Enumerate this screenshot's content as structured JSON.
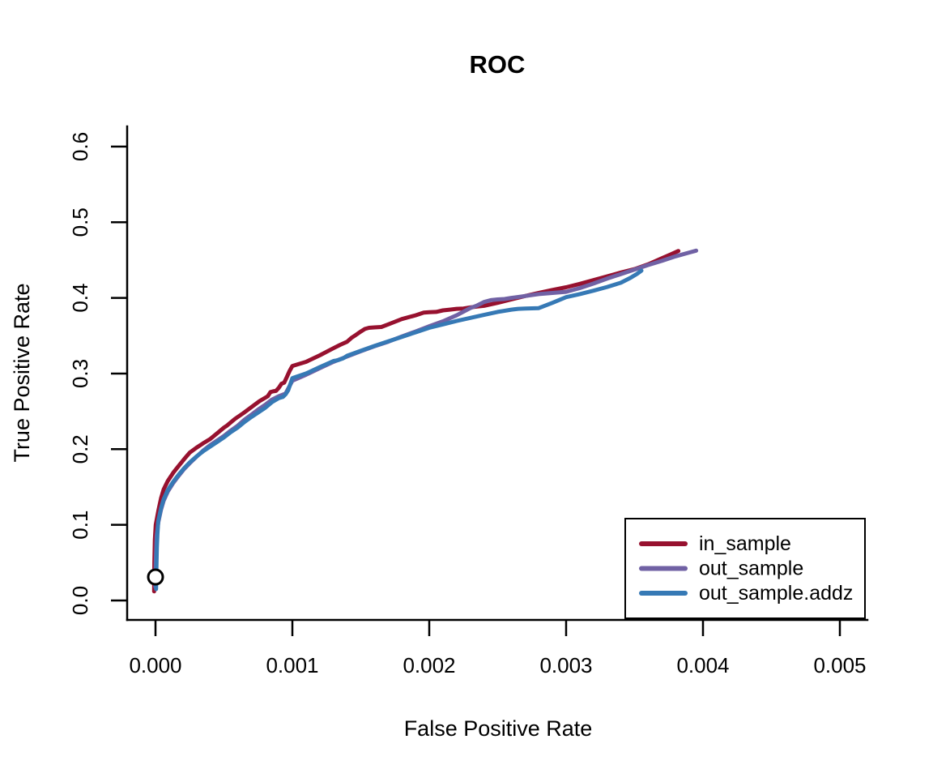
{
  "chart_data": {
    "type": "line",
    "title": "ROC",
    "xlabel": "False Positive Rate",
    "ylabel": "True Positive Rate",
    "xlim": [
      0.0,
      0.005
    ],
    "ylim": [
      0.0,
      0.6
    ],
    "grid": false,
    "x_ticks": {
      "values": [
        0.0,
        0.001,
        0.002,
        0.003,
        0.004,
        0.005
      ],
      "labels": [
        "0.000",
        "0.001",
        "0.002",
        "0.003",
        "0.004",
        "0.005"
      ]
    },
    "y_ticks": {
      "values": [
        0.0,
        0.1,
        0.2,
        0.3,
        0.4,
        0.5,
        0.6
      ],
      "labels": [
        "0.0",
        "0.1",
        "0.2",
        "0.3",
        "0.4",
        "0.5",
        "0.6"
      ]
    },
    "legend": {
      "position": "bottomright"
    },
    "marker": {
      "x": 0.0,
      "y": 0.031,
      "shape": "open-circle",
      "color": "#000000"
    },
    "axis_color": "#000000",
    "series": [
      {
        "name": "in_sample",
        "color": "#97112F",
        "points": [
          [
            -1e-05,
            0.012
          ],
          [
            -8e-06,
            0.05
          ],
          [
            -5e-06,
            0.08
          ],
          [
            2e-06,
            0.1
          ],
          [
            2e-05,
            0.118
          ],
          [
            4e-05,
            0.135
          ],
          [
            6e-05,
            0.147
          ],
          [
            9e-05,
            0.158
          ],
          [
            0.00013,
            0.169
          ],
          [
            0.00017,
            0.178
          ],
          [
            0.00021,
            0.187
          ],
          [
            0.00025,
            0.1955
          ],
          [
            0.0003,
            0.202
          ],
          [
            0.00035,
            0.208
          ],
          [
            0.0004,
            0.2135
          ],
          [
            0.00045,
            0.221
          ],
          [
            0.0005,
            0.2285
          ],
          [
            0.00052,
            0.231
          ],
          [
            0.00058,
            0.24
          ],
          [
            0.00064,
            0.2475
          ],
          [
            0.0007,
            0.2555
          ],
          [
            0.00076,
            0.2635
          ],
          [
            0.00082,
            0.27
          ],
          [
            0.00084,
            0.2755
          ],
          [
            0.00086,
            0.2765
          ],
          [
            0.00088,
            0.277
          ],
          [
            0.0009,
            0.281
          ],
          [
            0.00092,
            0.2865
          ],
          [
            0.00094,
            0.288
          ],
          [
            0.00096,
            0.2955
          ],
          [
            0.00098,
            0.3035
          ],
          [
            0.001,
            0.31
          ],
          [
            0.0011,
            0.3155
          ],
          [
            0.0012,
            0.324
          ],
          [
            0.0013,
            0.3335
          ],
          [
            0.00135,
            0.338
          ],
          [
            0.0014,
            0.342
          ],
          [
            0.00143,
            0.347
          ],
          [
            0.00146,
            0.3505
          ],
          [
            0.0015,
            0.3555
          ],
          [
            0.00153,
            0.359
          ],
          [
            0.00156,
            0.3605
          ],
          [
            0.0016,
            0.361
          ],
          [
            0.00165,
            0.3615
          ],
          [
            0.0017,
            0.365
          ],
          [
            0.0018,
            0.372
          ],
          [
            0.0019,
            0.377
          ],
          [
            0.00196,
            0.3805
          ],
          [
            0.002,
            0.381
          ],
          [
            0.00205,
            0.3815
          ],
          [
            0.0021,
            0.3835
          ],
          [
            0.00215,
            0.3845
          ],
          [
            0.0022,
            0.3855
          ],
          [
            0.00225,
            0.386
          ],
          [
            0.0023,
            0.3875
          ],
          [
            0.00235,
            0.3885
          ],
          [
            0.0024,
            0.3895
          ],
          [
            0.0025,
            0.3935
          ],
          [
            0.0026,
            0.398
          ],
          [
            0.0027,
            0.4025
          ],
          [
            0.0028,
            0.4065
          ],
          [
            0.0029,
            0.4105
          ],
          [
            0.003,
            0.414
          ],
          [
            0.0031,
            0.4185
          ],
          [
            0.0032,
            0.4235
          ],
          [
            0.0033,
            0.4285
          ],
          [
            0.0034,
            0.4335
          ],
          [
            0.0035,
            0.438
          ],
          [
            0.0036,
            0.4445
          ],
          [
            0.0037,
            0.4525
          ],
          [
            0.00377,
            0.458
          ],
          [
            0.00382,
            0.462
          ]
        ]
      },
      {
        "name": "out_sample",
        "color": "#7061A4",
        "points": [
          [
            -2e-06,
            0.018
          ],
          [
            2e-06,
            0.05
          ],
          [
            8e-06,
            0.085
          ],
          [
            2e-05,
            0.103
          ],
          [
            4e-05,
            0.12
          ],
          [
            6e-05,
            0.132
          ],
          [
            9e-05,
            0.144
          ],
          [
            0.00013,
            0.1555
          ],
          [
            0.00017,
            0.165
          ],
          [
            0.00021,
            0.174
          ],
          [
            0.00025,
            0.1815
          ],
          [
            0.0003,
            0.19
          ],
          [
            0.00035,
            0.1985
          ],
          [
            0.0004,
            0.2055
          ],
          [
            0.00045,
            0.2115
          ],
          [
            0.0005,
            0.2175
          ],
          [
            0.00055,
            0.2245
          ],
          [
            0.0006,
            0.231
          ],
          [
            0.00065,
            0.239
          ],
          [
            0.0007,
            0.2455
          ],
          [
            0.00075,
            0.2525
          ],
          [
            0.0008,
            0.2585
          ],
          [
            0.00085,
            0.2655
          ],
          [
            0.0009,
            0.27
          ],
          [
            0.00095,
            0.2735
          ],
          [
            0.001,
            0.2905
          ],
          [
            0.0011,
            0.2985
          ],
          [
            0.0012,
            0.307
          ],
          [
            0.0013,
            0.3155
          ],
          [
            0.0014,
            0.3225
          ],
          [
            0.0015,
            0.3295
          ],
          [
            0.0016,
            0.336
          ],
          [
            0.0017,
            0.342
          ],
          [
            0.0018,
            0.349
          ],
          [
            0.0019,
            0.3555
          ],
          [
            0.002,
            0.3625
          ],
          [
            0.0021,
            0.369
          ],
          [
            0.0022,
            0.377
          ],
          [
            0.0023,
            0.3865
          ],
          [
            0.00235,
            0.39
          ],
          [
            0.0024,
            0.3945
          ],
          [
            0.00245,
            0.397
          ],
          [
            0.0025,
            0.398
          ],
          [
            0.00255,
            0.3985
          ],
          [
            0.0026,
            0.4
          ],
          [
            0.0027,
            0.4025
          ],
          [
            0.0028,
            0.405
          ],
          [
            0.0029,
            0.4065
          ],
          [
            0.003,
            0.408
          ],
          [
            0.0031,
            0.413
          ],
          [
            0.0032,
            0.419
          ],
          [
            0.0033,
            0.4255
          ],
          [
            0.0034,
            0.4315
          ],
          [
            0.0035,
            0.4375
          ],
          [
            0.0036,
            0.4435
          ],
          [
            0.0037,
            0.449
          ],
          [
            0.0038,
            0.455
          ],
          [
            0.0039,
            0.46
          ],
          [
            0.00395,
            0.4625
          ]
        ]
      },
      {
        "name": "out_sample.addz",
        "color": "#3679B5",
        "points": [
          [
            4e-06,
            0.015
          ],
          [
            7e-06,
            0.045
          ],
          [
            1e-05,
            0.07
          ],
          [
            1.4e-05,
            0.088
          ],
          [
            2e-05,
            0.105
          ],
          [
            4e-05,
            0.122
          ],
          [
            6e-05,
            0.134
          ],
          [
            9e-05,
            0.146
          ],
          [
            0.00013,
            0.157
          ],
          [
            0.00017,
            0.1665
          ],
          [
            0.00021,
            0.175
          ],
          [
            0.00025,
            0.1825
          ],
          [
            0.0003,
            0.1905
          ],
          [
            0.00035,
            0.1975
          ],
          [
            0.0004,
            0.2035
          ],
          [
            0.00045,
            0.2095
          ],
          [
            0.0005,
            0.2155
          ],
          [
            0.00055,
            0.2225
          ],
          [
            0.0006,
            0.2285
          ],
          [
            0.00065,
            0.236
          ],
          [
            0.0007,
            0.2425
          ],
          [
            0.00075,
            0.2485
          ],
          [
            0.0008,
            0.2545
          ],
          [
            0.00085,
            0.262
          ],
          [
            0.0009,
            0.2675
          ],
          [
            0.00093,
            0.269
          ],
          [
            0.00095,
            0.2725
          ],
          [
            0.00097,
            0.278
          ],
          [
            0.001,
            0.294
          ],
          [
            0.0011,
            0.3
          ],
          [
            0.0012,
            0.3085
          ],
          [
            0.00125,
            0.3125
          ],
          [
            0.0013,
            0.3165
          ],
          [
            0.00133,
            0.3175
          ],
          [
            0.00137,
            0.32
          ],
          [
            0.0014,
            0.3235
          ],
          [
            0.0015,
            0.33
          ],
          [
            0.0016,
            0.3365
          ],
          [
            0.0017,
            0.3425
          ],
          [
            0.0018,
            0.3485
          ],
          [
            0.0019,
            0.3545
          ],
          [
            0.002,
            0.3605
          ],
          [
            0.0021,
            0.365
          ],
          [
            0.0022,
            0.3695
          ],
          [
            0.0023,
            0.3735
          ],
          [
            0.0024,
            0.3775
          ],
          [
            0.0025,
            0.3815
          ],
          [
            0.0026,
            0.3845
          ],
          [
            0.00265,
            0.3855
          ],
          [
            0.0027,
            0.386
          ],
          [
            0.0028,
            0.3865
          ],
          [
            0.0029,
            0.3935
          ],
          [
            0.003,
            0.401
          ],
          [
            0.0031,
            0.405
          ],
          [
            0.0032,
            0.4095
          ],
          [
            0.0033,
            0.4145
          ],
          [
            0.0034,
            0.42
          ],
          [
            0.00347,
            0.4265
          ],
          [
            0.00352,
            0.432
          ],
          [
            0.00355,
            0.436
          ]
        ]
      }
    ]
  }
}
